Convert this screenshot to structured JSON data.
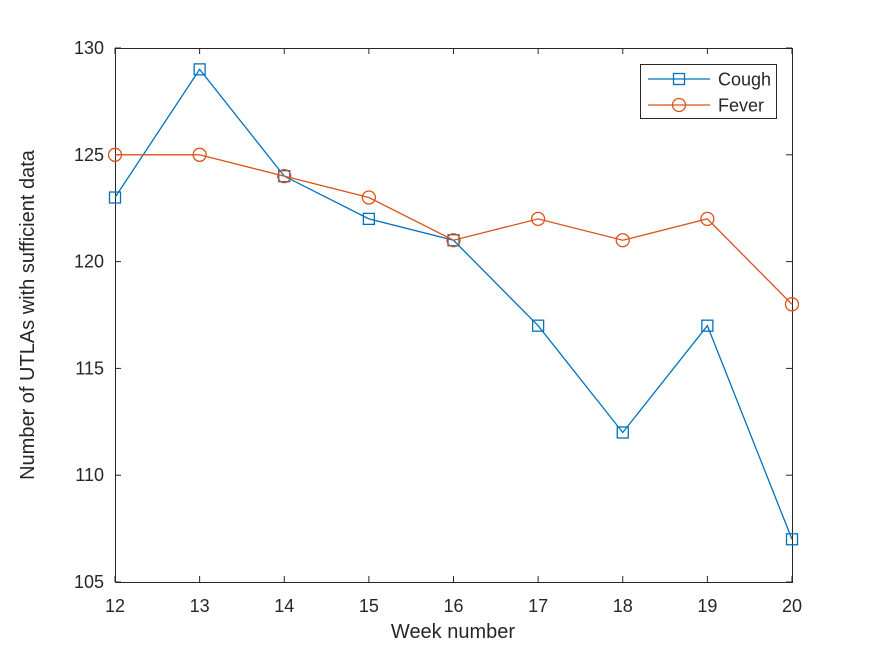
{
  "window": {
    "background": "#ffffff"
  },
  "chart_data": {
    "type": "line",
    "title": "",
    "xlabel": "Week number",
    "ylabel": "Number of UTLAs with sufficient data",
    "x": [
      12,
      13,
      14,
      15,
      16,
      17,
      18,
      19,
      20
    ],
    "series": [
      {
        "name": "Cough",
        "color": "#0072BD",
        "marker": "square",
        "values": [
          123,
          129,
          124,
          122,
          121,
          117,
          112,
          117,
          107
        ]
      },
      {
        "name": "Fever",
        "color": "#D95319",
        "marker": "circle",
        "values": [
          125,
          125,
          124,
          123,
          121,
          122,
          121,
          122,
          118
        ]
      }
    ],
    "xlim": [
      12,
      20
    ],
    "ylim": [
      105,
      130
    ],
    "xticks": [
      12,
      13,
      14,
      15,
      16,
      17,
      18,
      19,
      20
    ],
    "yticks": [
      105,
      110,
      115,
      120,
      125,
      130
    ],
    "grid": false,
    "box": true,
    "tick_direction": "in",
    "axis_color": "#262626",
    "legend": {
      "position": "top-right",
      "entries": [
        "Cough",
        "Fever"
      ]
    }
  }
}
